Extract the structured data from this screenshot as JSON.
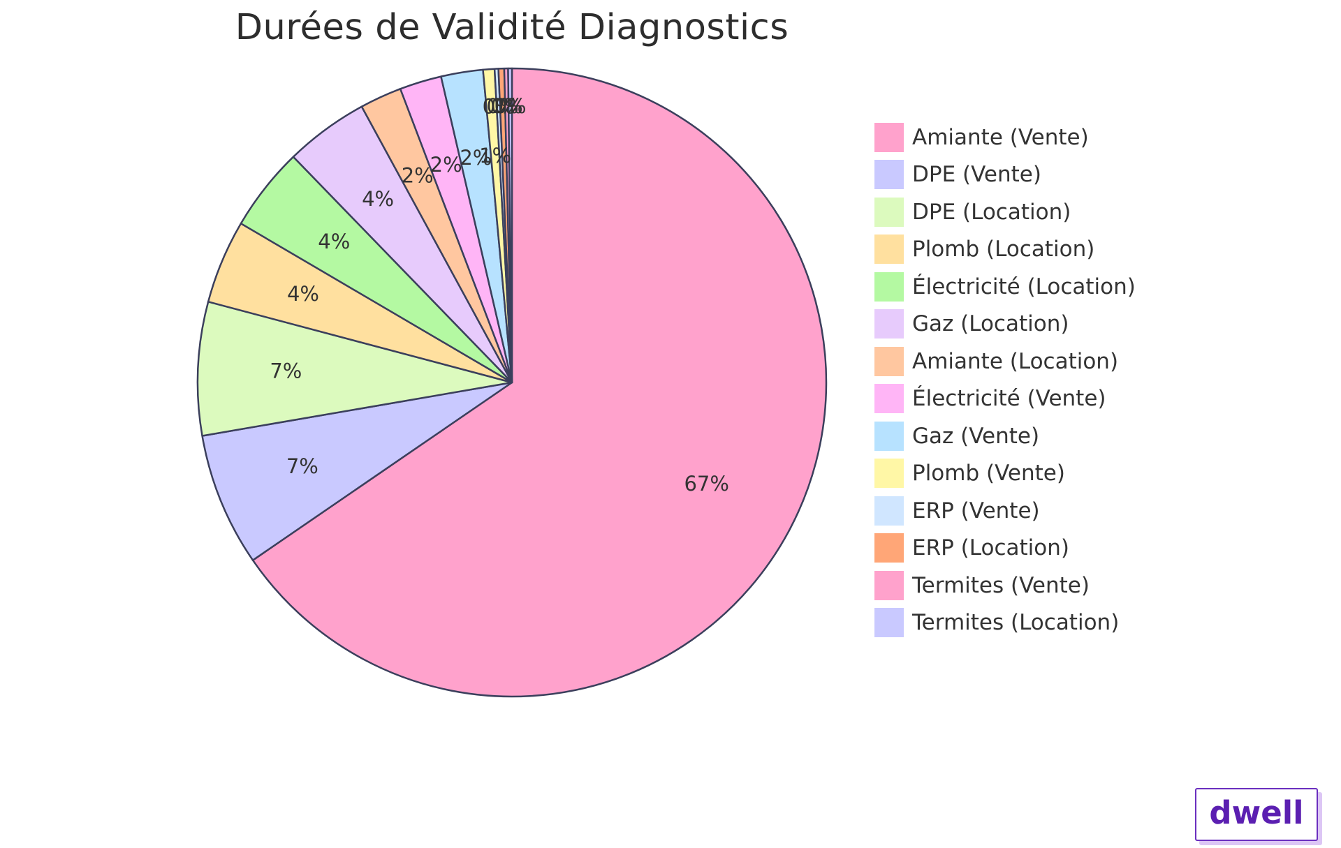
{
  "chart_data": {
    "type": "pie",
    "title": "Durées de Validité Diagnostics",
    "categories": [
      "Amiante (Vente)",
      "DPE (Vente)",
      "DPE (Location)",
      "Plomb (Location)",
      "Électricité (Location)",
      "Gaz (Location)",
      "Amiante (Location)",
      "Électricité (Vente)",
      "Gaz (Vente)",
      "Plomb (Vente)",
      "ERP (Vente)",
      "ERP (Location)",
      "Termites (Vente)",
      "Termites (Location)"
    ],
    "values": [
      66.8,
      7.0,
      7.0,
      4.4,
      4.4,
      4.4,
      2.2,
      2.2,
      2.2,
      0.6,
      0.2,
      0.3,
      0.2,
      0.2
    ],
    "slice_labels": [
      "67%",
      "7%",
      "7%",
      "4%",
      "4%",
      "4%",
      "2%",
      "2%",
      "2%",
      "1%",
      "0%",
      "0%",
      "0%",
      "0%"
    ],
    "colors": [
      "#ffa2cc",
      "#c9c9ff",
      "#dcfabe",
      "#ffe09f",
      "#b4f9a2",
      "#e7cbfc",
      "#ffc7a0",
      "#ffb5f6",
      "#b7e2ff",
      "#fff7a6",
      "#d0e6ff",
      "#ffa677",
      "#ffa2cc",
      "#c9c9ff"
    ],
    "start_angle_deg": 90,
    "direction": "clockwise",
    "legend_position": "right"
  },
  "brand": {
    "label": "dwell"
  }
}
